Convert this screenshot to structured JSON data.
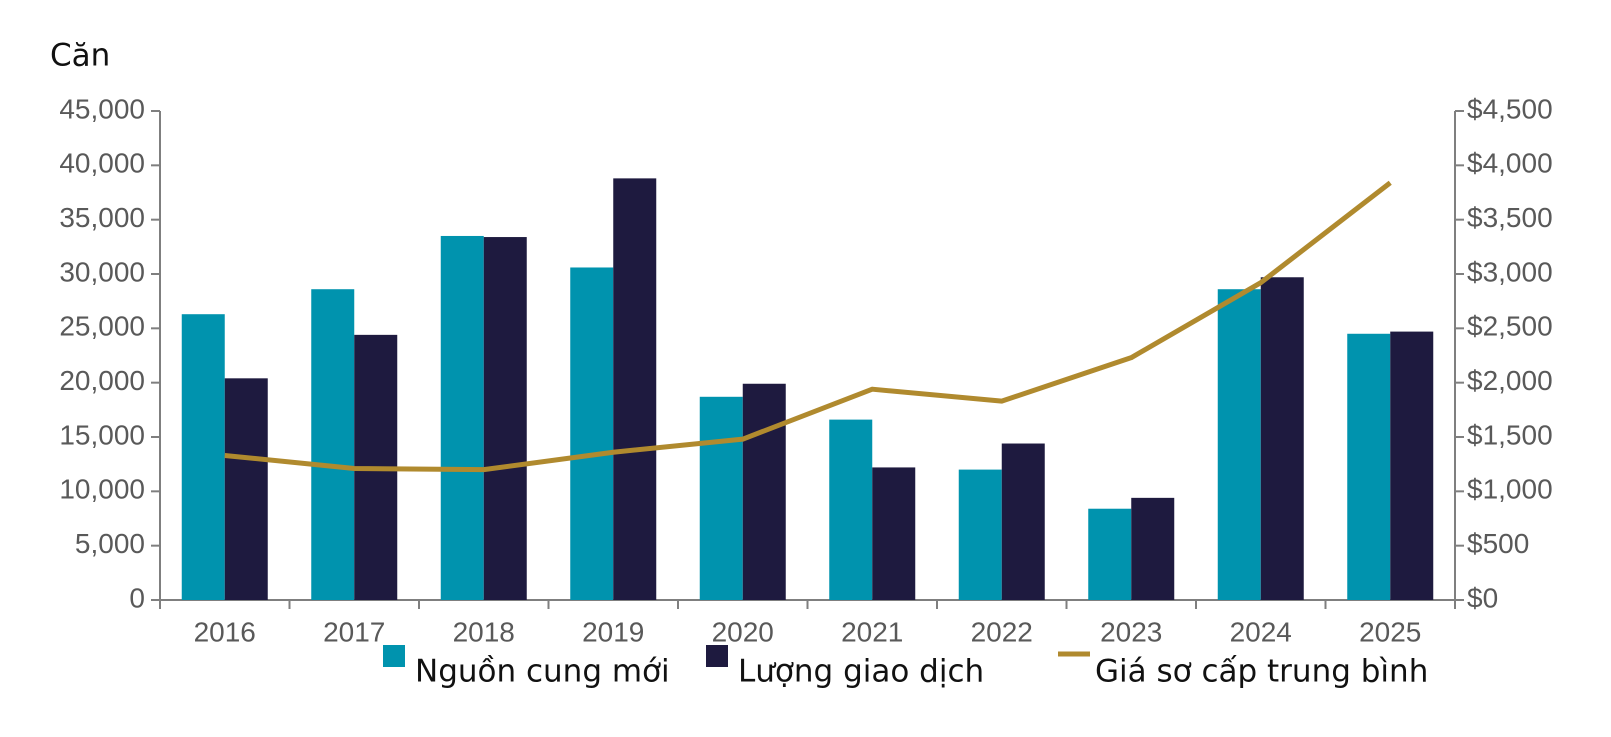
{
  "chart_data": {
    "type": "bar_line",
    "y_label": "Căn",
    "categories": [
      "2016",
      "2017",
      "2018",
      "2019",
      "2020",
      "2021",
      "2022",
      "2023",
      "2024",
      "2025"
    ],
    "series": [
      {
        "name": "Nguồn cung mới",
        "type": "bar",
        "color": "#0093ae",
        "values": [
          26300,
          28600,
          33500,
          30600,
          18700,
          16600,
          12000,
          8400,
          28600,
          24500
        ]
      },
      {
        "name": "Lượng giao dịch",
        "type": "bar",
        "color": "#1e1a3f",
        "values": [
          20400,
          24400,
          33400,
          38800,
          19900,
          12200,
          14400,
          9400,
          29700,
          24700
        ]
      },
      {
        "name": "Giá sơ cấp trung bình",
        "type": "line",
        "axis": "y2",
        "color": "#b08a2e",
        "values": [
          1330,
          1210,
          1200,
          1360,
          1480,
          1940,
          1830,
          2230,
          2920,
          3840
        ]
      }
    ],
    "ylim": [
      0,
      45000
    ],
    "yticks": [
      0,
      {
        "value": 5000,
        "label": "5,000"
      },
      {
        "value": 10000,
        "label": "10,000"
      },
      {
        "value": 15000,
        "label": "15,000"
      },
      {
        "value": 20000,
        "label": "20,000"
      },
      {
        "value": 25000,
        "label": "25,000"
      },
      {
        "value": 30000,
        "label": "30,000"
      },
      {
        "value": 35000,
        "label": "35,000"
      },
      {
        "value": 40000,
        "label": "40,000"
      },
      {
        "value": 45000,
        "label": "45,000"
      }
    ],
    "y2lim": [
      0,
      4500
    ],
    "y2ticks": [
      {
        "value": 0,
        "label": "$0"
      },
      {
        "value": 500,
        "label": "$500"
      },
      {
        "value": 1000,
        "label": "$1,000"
      },
      {
        "value": 1500,
        "label": "$1,500"
      },
      {
        "value": 2000,
        "label": "$2,000"
      },
      {
        "value": 2500,
        "label": "$2,500"
      },
      {
        "value": 3000,
        "label": "$3,000"
      },
      {
        "value": 3500,
        "label": "$3,500"
      },
      {
        "value": 4000,
        "label": "$4,000"
      },
      {
        "value": 4500,
        "label": "$4,500"
      }
    ],
    "grid": false
  }
}
